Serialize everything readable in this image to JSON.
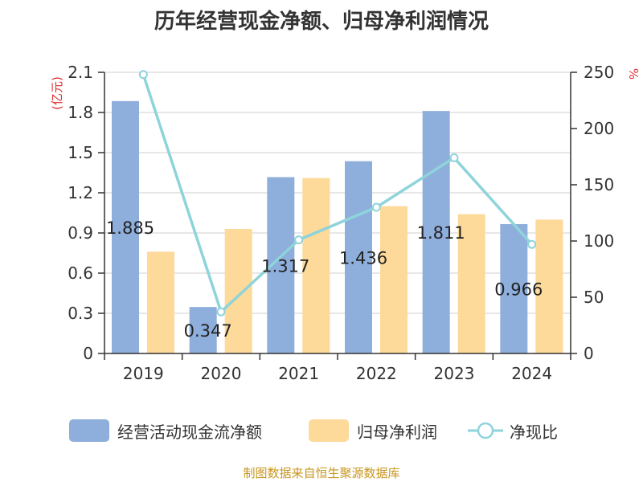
{
  "chart_data": {
    "type": "bar",
    "title": "历年经营现金净额、归母净利润情况",
    "categories": [
      "2019",
      "2020",
      "2021",
      "2022",
      "2023",
      "2024"
    ],
    "series": [
      {
        "name": "经营活动现金流净额",
        "type": "bar",
        "axis": "left",
        "color": "#8eaedb",
        "values": [
          1.885,
          0.347,
          1.317,
          1.436,
          1.811,
          0.966
        ]
      },
      {
        "name": "归母净利润",
        "type": "bar",
        "axis": "left",
        "color": "#fdd99a",
        "values": [
          0.76,
          0.93,
          1.31,
          1.1,
          1.04,
          1.0
        ]
      },
      {
        "name": "净现比",
        "type": "line",
        "axis": "right",
        "color": "#8fd3db",
        "values": [
          248,
          37,
          101,
          130,
          174,
          97
        ]
      }
    ],
    "data_labels": [
      "1.885",
      "0.347",
      "1.317",
      "1.436",
      "1.811",
      "0.966"
    ],
    "ylabel": "(亿元)",
    "y2label": "%",
    "ylim": [
      0,
      2.1
    ],
    "yticks": [
      "0",
      "0.3",
      "0.6",
      "0.9",
      "1.2",
      "1.5",
      "1.8",
      "2.1"
    ],
    "y2lim": [
      0,
      250
    ],
    "y2ticks": [
      "0",
      "50",
      "100",
      "150",
      "200",
      "250"
    ],
    "grid": true,
    "legend_position": "bottom"
  },
  "source": "制图数据来自恒生聚源数据库"
}
